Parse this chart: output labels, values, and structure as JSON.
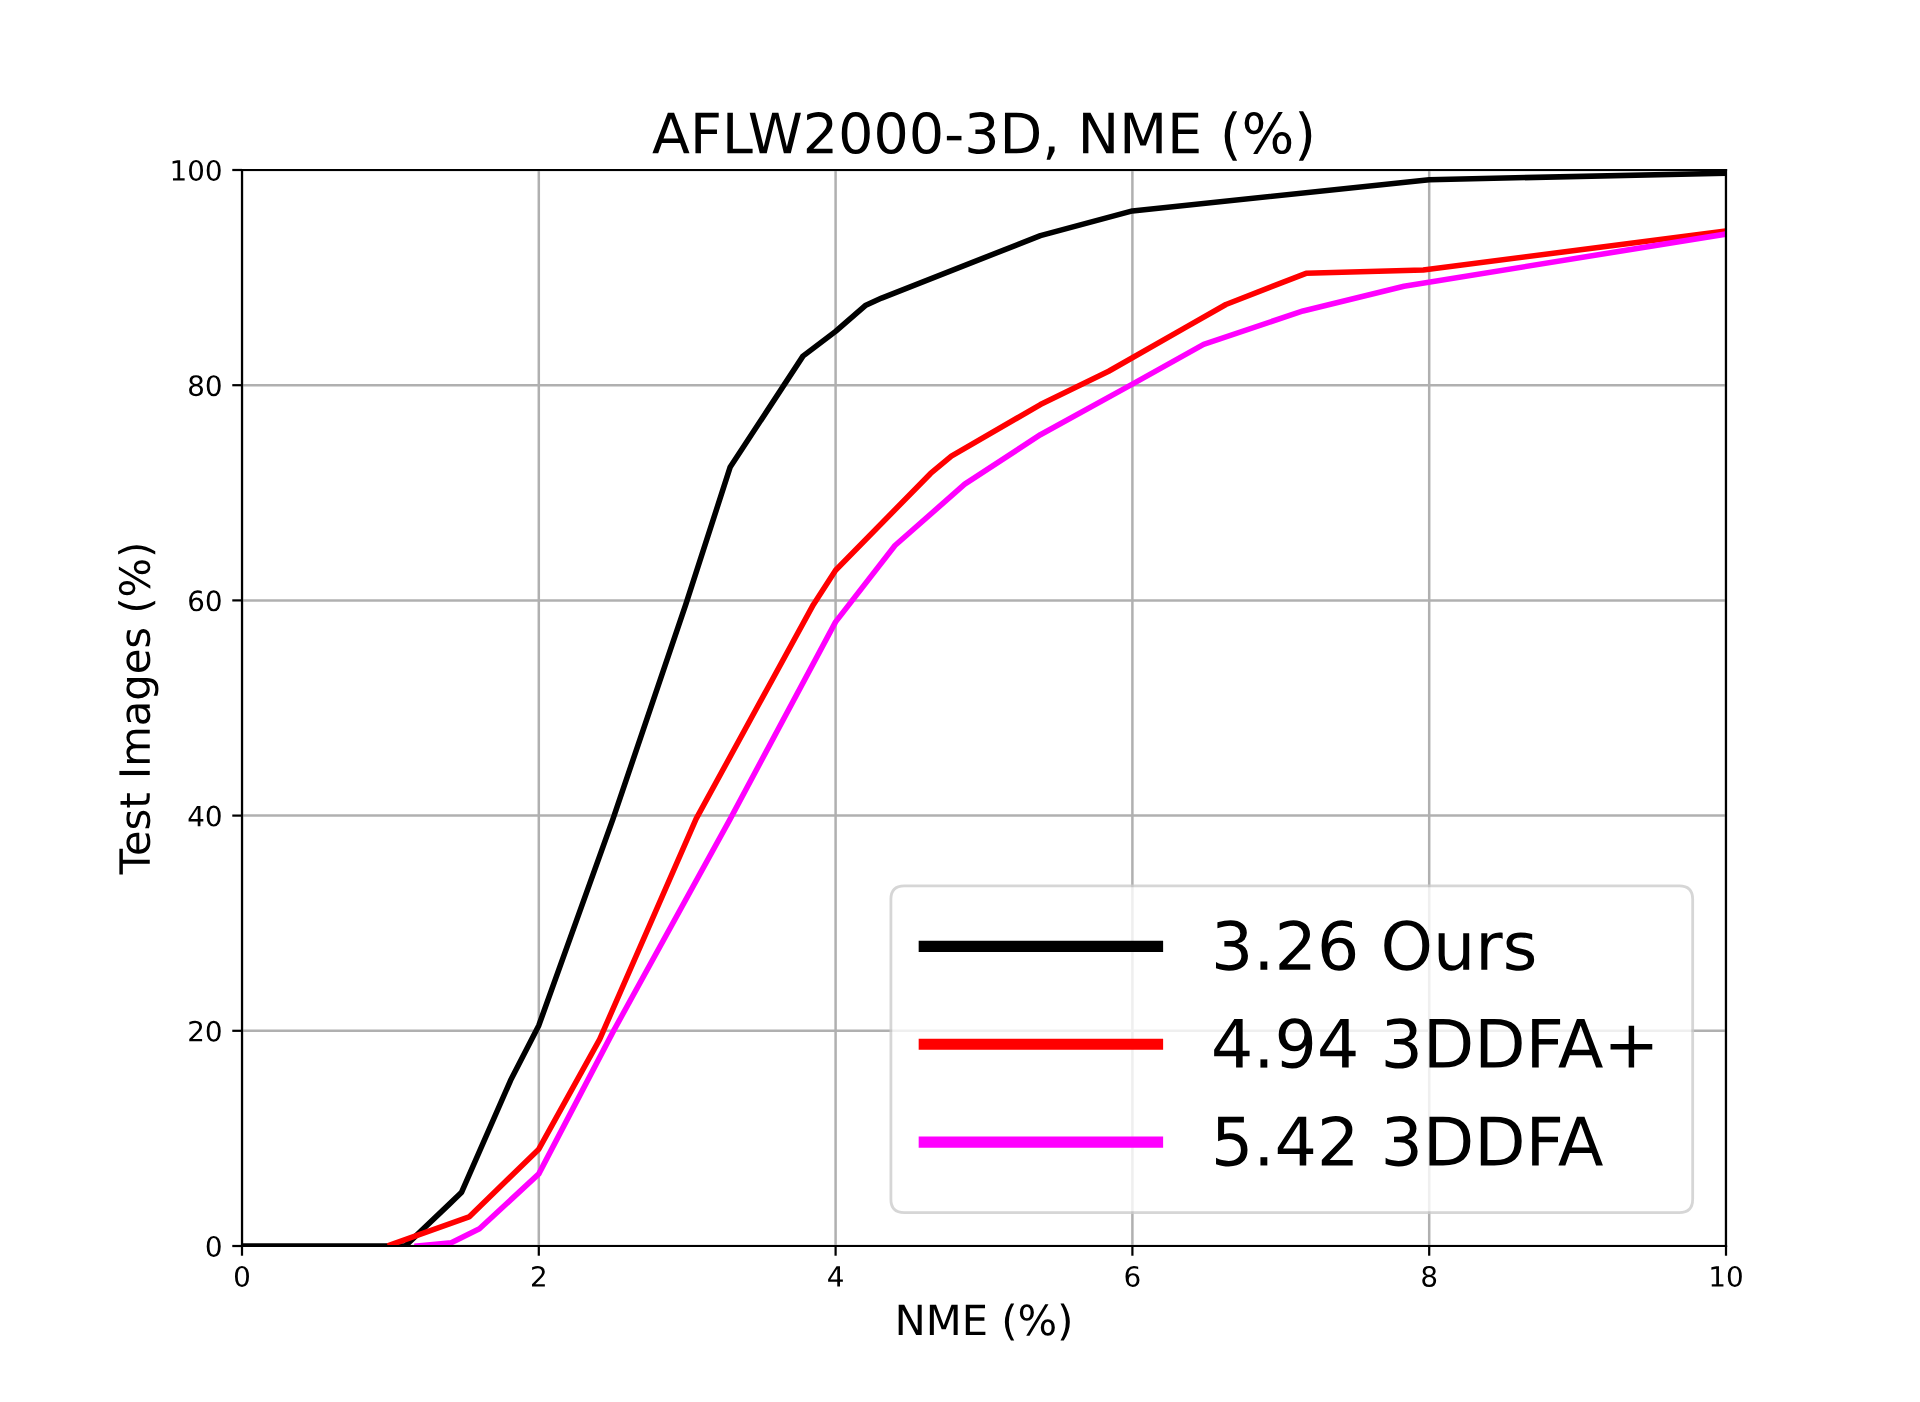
{
  "chart_data": {
    "type": "line",
    "title": "AFLW2000-3D, NME (%)",
    "xlabel": "NME (%)",
    "ylabel": "Test Images (%)",
    "xlim": [
      0,
      10
    ],
    "ylim": [
      0,
      100
    ],
    "xticks": [
      0,
      2,
      4,
      6,
      8,
      10
    ],
    "yticks": [
      0,
      20,
      40,
      60,
      80,
      100
    ],
    "grid": true,
    "legend": "bottom right",
    "series": [
      {
        "name": "3.26 Ours",
        "color": "#000000",
        "x": [
          0,
          1.1,
          1.39,
          1.48,
          1.81,
          2.0,
          2.5,
          2.99,
          3.29,
          3.78,
          4.0,
          4.2,
          4.31,
          5.38,
          6.0,
          8.0,
          10.0
        ],
        "values": [
          0,
          0,
          3.8,
          5,
          15.4,
          20.5,
          39.7,
          59.6,
          72.4,
          82.7,
          85,
          87.4,
          88.1,
          93.9,
          96.2,
          99.1,
          99.7
        ]
      },
      {
        "name": "4.94 3DDFA+",
        "color": "#ff0000",
        "x": [
          1.0,
          1.53,
          2.0,
          2.41,
          3.06,
          3.85,
          4.0,
          4.64,
          4.78,
          5.38,
          5.84,
          6.35,
          6.63,
          7.17,
          7.96,
          9.98
        ],
        "values": [
          0.1,
          2.7,
          9,
          19.2,
          39.7,
          59.6,
          62.8,
          71.8,
          73.4,
          78.2,
          81.3,
          85.3,
          87.5,
          90.4,
          90.7,
          94.3
        ]
      },
      {
        "name": "5.42 3DDFA",
        "color": "#ff00ff",
        "x": [
          1.18,
          1.41,
          1.6,
          2.0,
          2.5,
          3.29,
          4.0,
          4.4,
          4.87,
          5.38,
          6.0,
          6.48,
          7.15,
          7.83,
          9.98
        ],
        "values": [
          0,
          0.3,
          1.6,
          6.7,
          19.9,
          39.7,
          58,
          65.1,
          70.8,
          75.4,
          80.1,
          83.8,
          86.9,
          89.2,
          94.0
        ]
      }
    ]
  }
}
